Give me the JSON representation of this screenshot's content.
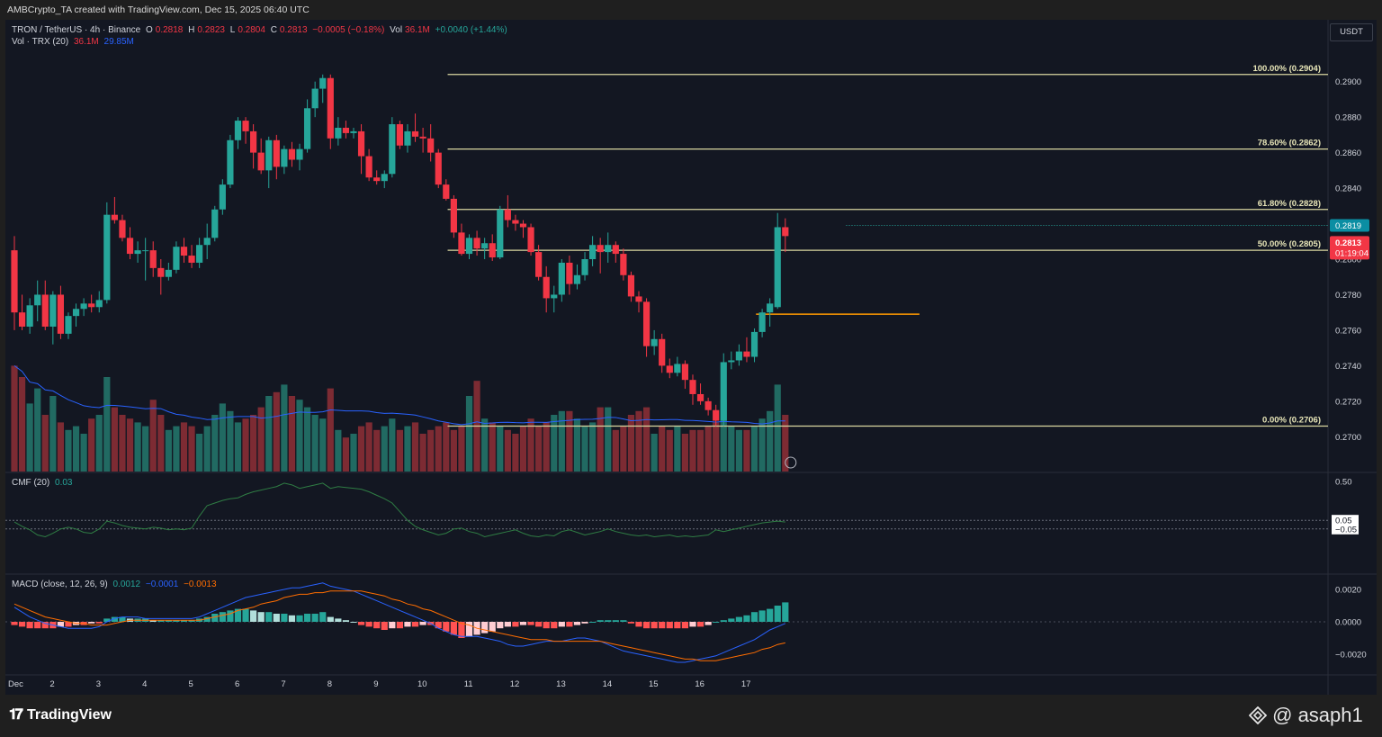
{
  "header": {
    "caption": "AMBCrypto_TA created with TradingView.com, Dec 15, 2025 06:40 UTC"
  },
  "legend": {
    "symbol": "TRON / TetherUS · 4h · Binance",
    "o_label": "O",
    "o": "0.2818",
    "h_label": "H",
    "h": "0.2823",
    "l_label": "L",
    "l": "0.2804",
    "c_label": "C",
    "c": "0.2813",
    "chg": "−0.0005 (−0.18%)",
    "vol_label": "Vol",
    "vol": "36.1M",
    "vol_chg": "+0.0040 (+1.44%)",
    "vol_ind": "Vol · TRX (20)",
    "vol_ind_v1": "36.1M",
    "vol_ind_v2": "29.85M",
    "cmf": "CMF (20)",
    "cmf_v": "0.03",
    "macd": "MACD (close, 12, 26, 9)",
    "macd_v1": "0.0012",
    "macd_v2": "−0.0001",
    "macd_v3": "−0.0013"
  },
  "currency": "USDT",
  "price_axis_ticks": [
    "0.2900",
    "0.2880",
    "0.2860",
    "0.2840",
    "0.2820",
    "0.2800",
    "0.2780",
    "0.2760",
    "0.2740",
    "0.2720",
    "0.2700"
  ],
  "price_badges": {
    "last": "0.2819",
    "current": "0.2813",
    "countdown": "01:19:04"
  },
  "cmf_ticks": [
    "0.50",
    "0.05",
    "−0.05"
  ],
  "macd_ticks": [
    "0.0020",
    "0.0000",
    "−0.0020"
  ],
  "fib_levels": [
    {
      "label": "100.00% (0.2904)",
      "price": 0.2904
    },
    {
      "label": "78.60% (0.2862)",
      "price": 0.2862
    },
    {
      "label": "61.80% (0.2828)",
      "price": 0.2828
    },
    {
      "label": "50.00% (0.2805)",
      "price": 0.2805
    },
    {
      "label": "0.00% (0.2706)",
      "price": 0.2706
    }
  ],
  "support_line": {
    "price": 0.2769
  },
  "dotted_line": {
    "price": 0.2819
  },
  "x_labels": [
    "Dec",
    "2",
    "3",
    "4",
    "5",
    "6",
    "7",
    "8",
    "9",
    "10",
    "11",
    "12",
    "13",
    "14",
    "15",
    "16",
    "17"
  ],
  "colors": {
    "up": "#26a69a",
    "down": "#f23645",
    "fib": "#d9d7a0",
    "support": "#ff9800",
    "bg": "#131722",
    "vol_up": "#216a62",
    "vol_down": "#7d2b33",
    "cmf": "#2f7d44",
    "macd": "#2962ff",
    "signal": "#ff6d00"
  },
  "footer": {
    "brand": "TradingView",
    "watermark": "@ asaph1"
  },
  "chart_data": {
    "type": "candlestick",
    "title": "TRON / TetherUS · 4h · Binance",
    "ylim": [
      0.2688,
      0.2912
    ],
    "x_start": "Dec 1",
    "candles": [
      [
        0.2805,
        0.2813,
        0.276,
        0.277
      ],
      [
        0.277,
        0.278,
        0.276,
        0.2762
      ],
      [
        0.2762,
        0.2778,
        0.2758,
        0.2774
      ],
      [
        0.2774,
        0.2788,
        0.2765,
        0.278
      ],
      [
        0.278,
        0.2788,
        0.276,
        0.2762
      ],
      [
        0.2762,
        0.2782,
        0.2752,
        0.278
      ],
      [
        0.278,
        0.2785,
        0.2755,
        0.2758
      ],
      [
        0.2758,
        0.277,
        0.2755,
        0.2768
      ],
      [
        0.2768,
        0.2775,
        0.2762,
        0.2772
      ],
      [
        0.2772,
        0.2778,
        0.2768,
        0.2775
      ],
      [
        0.2775,
        0.278,
        0.277,
        0.2773
      ],
      [
        0.2773,
        0.2782,
        0.277,
        0.2777
      ],
      [
        0.2777,
        0.2832,
        0.2775,
        0.2825
      ],
      [
        0.2825,
        0.2835,
        0.282,
        0.2822
      ],
      [
        0.2822,
        0.2825,
        0.281,
        0.2812
      ],
      [
        0.2812,
        0.2818,
        0.28,
        0.2803
      ],
      [
        0.2803,
        0.281,
        0.2798,
        0.2805
      ],
      [
        0.2805,
        0.2812,
        0.2788,
        0.2805
      ],
      [
        0.2805,
        0.281,
        0.279,
        0.2795
      ],
      [
        0.2795,
        0.28,
        0.278,
        0.279
      ],
      [
        0.279,
        0.2798,
        0.2788,
        0.2794
      ],
      [
        0.2794,
        0.281,
        0.2792,
        0.2807
      ],
      [
        0.2807,
        0.2812,
        0.2798,
        0.2802
      ],
      [
        0.2802,
        0.2808,
        0.2795,
        0.2798
      ],
      [
        0.2798,
        0.2812,
        0.2795,
        0.2808
      ],
      [
        0.2808,
        0.282,
        0.28,
        0.2812
      ],
      [
        0.2812,
        0.283,
        0.281,
        0.2828
      ],
      [
        0.2828,
        0.2845,
        0.2825,
        0.2842
      ],
      [
        0.2842,
        0.287,
        0.284,
        0.2867
      ],
      [
        0.2867,
        0.288,
        0.2862,
        0.2878
      ],
      [
        0.2878,
        0.288,
        0.2865,
        0.2872
      ],
      [
        0.2872,
        0.2876,
        0.2851,
        0.286
      ],
      [
        0.286,
        0.2868,
        0.2848,
        0.285
      ],
      [
        0.285,
        0.2869,
        0.284,
        0.2867
      ],
      [
        0.2867,
        0.287,
        0.2845,
        0.2852
      ],
      [
        0.2852,
        0.2864,
        0.2848,
        0.2862
      ],
      [
        0.2862,
        0.2866,
        0.2852,
        0.2856
      ],
      [
        0.2856,
        0.2865,
        0.285,
        0.2862
      ],
      [
        0.2862,
        0.289,
        0.286,
        0.2885
      ],
      [
        0.2885,
        0.29,
        0.288,
        0.2896
      ],
      [
        0.2896,
        0.2904,
        0.2888,
        0.2902
      ],
      [
        0.2902,
        0.2904,
        0.2862,
        0.2868
      ],
      [
        0.2868,
        0.288,
        0.2864,
        0.2874
      ],
      [
        0.2874,
        0.2878,
        0.2868,
        0.2871
      ],
      [
        0.2871,
        0.2874,
        0.2868,
        0.2872
      ],
      [
        0.2872,
        0.2876,
        0.2848,
        0.2858
      ],
      [
        0.2858,
        0.2862,
        0.2844,
        0.2846
      ],
      [
        0.2846,
        0.285,
        0.2842,
        0.2844
      ],
      [
        0.2844,
        0.285,
        0.284,
        0.2848
      ],
      [
        0.2848,
        0.288,
        0.2846,
        0.2876
      ],
      [
        0.2876,
        0.2878,
        0.2862,
        0.2864
      ],
      [
        0.2864,
        0.2876,
        0.286,
        0.2872
      ],
      [
        0.2872,
        0.2882,
        0.2866,
        0.2869
      ],
      [
        0.2869,
        0.2874,
        0.286,
        0.2868
      ],
      [
        0.2868,
        0.2876,
        0.2855,
        0.286
      ],
      [
        0.286,
        0.2862,
        0.284,
        0.2842
      ],
      [
        0.2842,
        0.2845,
        0.2833,
        0.2834
      ],
      [
        0.2834,
        0.2836,
        0.2812,
        0.2815
      ],
      [
        0.2815,
        0.282,
        0.2802,
        0.2803
      ],
      [
        0.2803,
        0.2814,
        0.28,
        0.2812
      ],
      [
        0.2812,
        0.2816,
        0.2802,
        0.2806
      ],
      [
        0.2806,
        0.2812,
        0.28,
        0.2809
      ],
      [
        0.2809,
        0.2814,
        0.2799,
        0.2801
      ],
      [
        0.2801,
        0.283,
        0.28,
        0.2828
      ],
      [
        0.2828,
        0.2836,
        0.2818,
        0.2822
      ],
      [
        0.2822,
        0.2825,
        0.2816,
        0.282
      ],
      [
        0.282,
        0.2822,
        0.2812,
        0.2818
      ],
      [
        0.2818,
        0.282,
        0.2802,
        0.2804
      ],
      [
        0.2804,
        0.2808,
        0.2788,
        0.279
      ],
      [
        0.279,
        0.2796,
        0.277,
        0.2778
      ],
      [
        0.2778,
        0.2785,
        0.277,
        0.278
      ],
      [
        0.278,
        0.28,
        0.2776,
        0.2798
      ],
      [
        0.2798,
        0.2802,
        0.278,
        0.2786
      ],
      [
        0.2786,
        0.2797,
        0.2783,
        0.2791
      ],
      [
        0.2791,
        0.2804,
        0.2788,
        0.28
      ],
      [
        0.28,
        0.2813,
        0.2796,
        0.2808
      ],
      [
        0.2808,
        0.2812,
        0.2792,
        0.2804
      ],
      [
        0.2804,
        0.2815,
        0.2798,
        0.2808
      ],
      [
        0.2808,
        0.281,
        0.2798,
        0.2803
      ],
      [
        0.2803,
        0.2806,
        0.2788,
        0.2791
      ],
      [
        0.2791,
        0.2793,
        0.2776,
        0.2779
      ],
      [
        0.2779,
        0.2782,
        0.277,
        0.2776
      ],
      [
        0.2776,
        0.2778,
        0.2745,
        0.2751
      ],
      [
        0.2751,
        0.276,
        0.2746,
        0.2755
      ],
      [
        0.2755,
        0.2758,
        0.2736,
        0.274
      ],
      [
        0.274,
        0.2744,
        0.2733,
        0.2736
      ],
      [
        0.2736,
        0.2745,
        0.2734,
        0.2741
      ],
      [
        0.2741,
        0.2743,
        0.2727,
        0.2732
      ],
      [
        0.2732,
        0.2735,
        0.2718,
        0.2724
      ],
      [
        0.2724,
        0.273,
        0.2718,
        0.272
      ],
      [
        0.272,
        0.2722,
        0.2712,
        0.2715
      ],
      [
        0.2715,
        0.2718,
        0.2706,
        0.2709
      ],
      [
        0.2709,
        0.2747,
        0.2706,
        0.2742
      ],
      [
        0.2742,
        0.2748,
        0.2738,
        0.2743
      ],
      [
        0.2743,
        0.2752,
        0.274,
        0.2748
      ],
      [
        0.2748,
        0.2756,
        0.2742,
        0.2745
      ],
      [
        0.2745,
        0.2761,
        0.2742,
        0.2759
      ],
      [
        0.2759,
        0.2772,
        0.2756,
        0.277
      ],
      [
        0.277,
        0.2778,
        0.2762,
        0.2775
      ],
      [
        0.2773,
        0.2826,
        0.2772,
        0.2818
      ],
      [
        0.2818,
        0.2823,
        0.2804,
        0.2813
      ]
    ],
    "volume": [
      28,
      25,
      18,
      22,
      15,
      20,
      13,
      11,
      12,
      10,
      14,
      15,
      25,
      17,
      15,
      14,
      13,
      12,
      19,
      15,
      11,
      12,
      13,
      12,
      10,
      12,
      15,
      18,
      16,
      13,
      14,
      15,
      17,
      20,
      21,
      23,
      20,
      19,
      17,
      15,
      14,
      22,
      11,
      9,
      10,
      12,
      13,
      11,
      12,
      14,
      11,
      12,
      13,
      10,
      11,
      12,
      13,
      11,
      12,
      20,
      24,
      14,
      13,
      12,
      11,
      10,
      12,
      14,
      12,
      13,
      15,
      16,
      16,
      14,
      12,
      13,
      17,
      17,
      11,
      12,
      15,
      16,
      17,
      10,
      12,
      11,
      12,
      10,
      11,
      11,
      12,
      13,
      19,
      12,
      11,
      11,
      12,
      14,
      16,
      23,
      15
    ],
    "cmf": [
      0.03,
      -0.02,
      -0.06,
      -0.12,
      -0.14,
      -0.1,
      -0.05,
      -0.03,
      -0.05,
      -0.09,
      -0.1,
      -0.05,
      0.04,
      0.02,
      -0.01,
      -0.03,
      -0.04,
      -0.05,
      -0.03,
      -0.04,
      -0.06,
      -0.05,
      -0.06,
      -0.04,
      0.1,
      0.22,
      0.25,
      0.28,
      0.3,
      0.31,
      0.35,
      0.38,
      0.4,
      0.42,
      0.44,
      0.48,
      0.46,
      0.42,
      0.44,
      0.46,
      0.48,
      0.42,
      0.44,
      0.43,
      0.42,
      0.41,
      0.38,
      0.34,
      0.3,
      0.25,
      0.15,
      0.05,
      -0.02,
      -0.06,
      -0.09,
      -0.12,
      -0.1,
      -0.05,
      -0.04,
      -0.08,
      -0.1,
      -0.14,
      -0.12,
      -0.1,
      -0.08,
      -0.06,
      -0.1,
      -0.13,
      -0.14,
      -0.12,
      -0.13,
      -0.08,
      -0.06,
      -0.09,
      -0.12,
      -0.1,
      -0.08,
      -0.05,
      -0.08,
      -0.1,
      -0.12,
      -0.13,
      -0.12,
      -0.14,
      -0.13,
      -0.12,
      -0.14,
      -0.13,
      -0.14,
      -0.13,
      -0.12,
      -0.06,
      -0.08,
      -0.06,
      -0.04,
      -0.02,
      0.0,
      0.02,
      0.03,
      0.04,
      0.03
    ],
    "macd_hist": [
      -0.0002,
      -0.0003,
      -0.0004,
      -0.0004,
      -0.0004,
      -0.0004,
      -0.0003,
      -0.0003,
      -0.0002,
      -0.0002,
      -0.0001,
      -0.0001,
      0.0002,
      0.0003,
      0.0003,
      0.0002,
      0.0002,
      0.0002,
      0.0001,
      0.0001,
      0.0001,
      0.0001,
      0.0001,
      0.0001,
      0.0002,
      0.0003,
      0.0005,
      0.0006,
      0.0007,
      0.0008,
      0.0008,
      0.0007,
      0.0006,
      0.0006,
      0.0005,
      0.0005,
      0.0004,
      0.0004,
      0.0005,
      0.0005,
      0.0006,
      0.0003,
      0.0002,
      0.0001,
      0.0,
      -0.0002,
      -0.0003,
      -0.0004,
      -0.0005,
      -0.0004,
      -0.0004,
      -0.0003,
      -0.0003,
      -0.0002,
      -0.0002,
      -0.0004,
      -0.0006,
      -0.0008,
      -0.001,
      -0.0009,
      -0.0008,
      -0.0007,
      -0.0006,
      -0.0004,
      -0.0003,
      -0.0003,
      -0.0002,
      -0.0002,
      -0.0003,
      -0.0004,
      -0.0004,
      -0.0003,
      -0.0003,
      -0.0002,
      -0.0001,
      0.0,
      0.0001,
      0.0001,
      0.0001,
      0.0001,
      -0.0001,
      -0.0003,
      -0.0004,
      -0.0004,
      -0.0004,
      -0.0004,
      -0.0004,
      -0.0004,
      -0.0003,
      -0.0003,
      -0.0002,
      0.0,
      0.0001,
      0.0002,
      0.0003,
      0.0004,
      0.0006,
      0.0007,
      0.0008,
      0.001,
      0.0012
    ],
    "macd": [
      0.0009,
      0.0006,
      0.0003,
      0.0001,
      -0.0001,
      -0.0002,
      -0.0003,
      -0.0004,
      -0.0004,
      -0.0004,
      -0.0004,
      -0.0003,
      0.0,
      0.0002,
      0.0003,
      0.0003,
      0.0003,
      0.0002,
      0.0002,
      0.0002,
      0.0002,
      0.0002,
      0.0002,
      0.0002,
      0.0003,
      0.0005,
      0.0007,
      0.0009,
      0.0011,
      0.0013,
      0.0015,
      0.0016,
      0.0017,
      0.0018,
      0.0019,
      0.002,
      0.0021,
      0.0021,
      0.0022,
      0.0023,
      0.0024,
      0.0022,
      0.0021,
      0.002,
      0.0019,
      0.0017,
      0.0015,
      0.0013,
      0.0011,
      0.0009,
      0.0007,
      0.0005,
      0.0003,
      0.0001,
      -0.0001,
      -0.0004,
      -0.0006,
      -0.0008,
      -0.0009,
      -0.0009,
      -0.0009,
      -0.001,
      -0.0011,
      -0.0012,
      -0.0014,
      -0.0015,
      -0.0015,
      -0.0014,
      -0.0013,
      -0.0012,
      -0.0012,
      -0.0012,
      -0.0011,
      -0.001,
      -0.001,
      -0.0011,
      -0.0012,
      -0.0014,
      -0.0016,
      -0.0018,
      -0.0019,
      -0.002,
      -0.0021,
      -0.0022,
      -0.0023,
      -0.0024,
      -0.0025,
      -0.0025,
      -0.0024,
      -0.0023,
      -0.0022,
      -0.0021,
      -0.0019,
      -0.0017,
      -0.0015,
      -0.0013,
      -0.0011,
      -0.0008,
      -0.0005,
      -0.0003,
      -0.0001
    ],
    "signal": [
      0.0011,
      0.0009,
      0.0007,
      0.0005,
      0.0003,
      0.0002,
      0.0001,
      0.0,
      -0.0001,
      -0.0001,
      -0.0002,
      -0.0002,
      -0.0002,
      -0.0001,
      0.0,
      0.0001,
      0.0001,
      0.0001,
      0.0001,
      0.0001,
      0.0001,
      0.0001,
      0.0001,
      0.0001,
      0.0001,
      0.0002,
      0.0003,
      0.0004,
      0.0005,
      0.0007,
      0.0008,
      0.0009,
      0.0011,
      0.0012,
      0.0013,
      0.0015,
      0.0016,
      0.0017,
      0.0017,
      0.0018,
      0.0018,
      0.0019,
      0.0019,
      0.0019,
      0.0019,
      0.0019,
      0.0018,
      0.0017,
      0.0016,
      0.0014,
      0.0013,
      0.0011,
      0.001,
      0.0008,
      0.0007,
      0.0005,
      0.0003,
      0.0001,
      -0.0001,
      -0.0002,
      -0.0004,
      -0.0005,
      -0.0006,
      -0.0007,
      -0.0008,
      -0.0009,
      -0.001,
      -0.0011,
      -0.0011,
      -0.0011,
      -0.0012,
      -0.0012,
      -0.0012,
      -0.0012,
      -0.0012,
      -0.0012,
      -0.0012,
      -0.0013,
      -0.0014,
      -0.0015,
      -0.0016,
      -0.0017,
      -0.0018,
      -0.0019,
      -0.002,
      -0.0021,
      -0.0022,
      -0.0023,
      -0.0023,
      -0.0024,
      -0.0024,
      -0.0024,
      -0.0023,
      -0.0022,
      -0.0021,
      -0.002,
      -0.0019,
      -0.0017,
      -0.0016,
      -0.0014,
      -0.0013
    ]
  }
}
